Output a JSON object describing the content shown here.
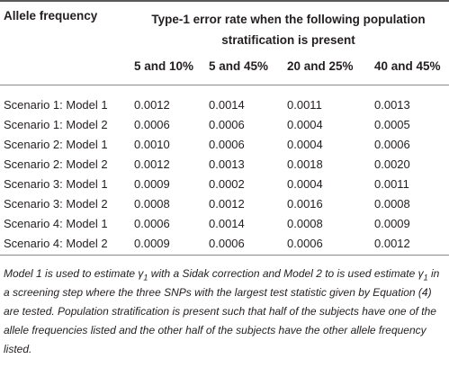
{
  "table": {
    "col1_header": "Allele frequency",
    "group_header_line1": "Type-1 error rate when the following population",
    "group_header_line2": "stratification is present",
    "sub_headers": [
      "5 and 10%",
      "5 and 45%",
      "20 and 25%",
      "40 and 45%"
    ],
    "rows": [
      {
        "label": "Scenario 1: Model 1",
        "values": [
          "0.0012",
          "0.0014",
          "0.0011",
          "0.0013"
        ]
      },
      {
        "label": "Scenario 1: Model 2",
        "values": [
          "0.0006",
          "0.0006",
          "0.0004",
          "0.0005"
        ]
      },
      {
        "label": "Scenario 2: Model 1",
        "values": [
          "0.0010",
          "0.0006",
          "0.0004",
          "0.0006"
        ]
      },
      {
        "label": "Scenario 2: Model 2",
        "values": [
          "0.0012",
          "0.0013",
          "0.0018",
          "0.0020"
        ]
      },
      {
        "label": "Scenario 3: Model 1",
        "values": [
          "0.0009",
          "0.0002",
          "0.0004",
          "0.0011"
        ]
      },
      {
        "label": "Scenario 3: Model 2",
        "values": [
          "0.0008",
          "0.0012",
          "0.0016",
          "0.0008"
        ]
      },
      {
        "label": "Scenario 4: Model 1",
        "values": [
          "0.0006",
          "0.0014",
          "0.0008",
          "0.0009"
        ]
      },
      {
        "label": "Scenario 4: Model 2",
        "values": [
          "0.0009",
          "0.0006",
          "0.0006",
          "0.0012"
        ]
      }
    ]
  },
  "footnote": {
    "part1": "Model 1 is used to estimate ",
    "symbol1": "γ",
    "sub1": "1",
    "part2": " with a Sidak correction and Model 2 to is used estimate ",
    "symbol2": "γ",
    "sub2": "1",
    "part3": " in a screening step where the three SNPs with the largest test statistic given by Equation (4) are tested. Population stratification is present such that half of the subjects have one of the allele frequencies listed and the other half of the subjects have the other allele frequency listed."
  },
  "colors": {
    "text": "#231f20",
    "rules": "#5a5a5a"
  }
}
